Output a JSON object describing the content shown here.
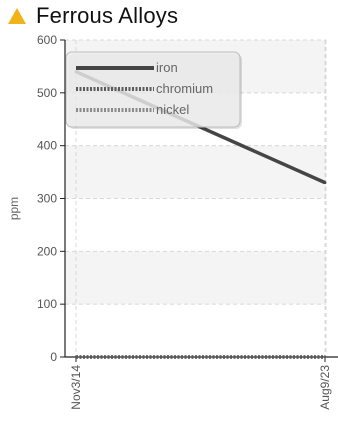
{
  "header": {
    "title": "Ferrous Alloys",
    "icon": "warning-triangle-icon",
    "icon_color": "#F2B21B"
  },
  "chart_data": {
    "type": "line",
    "title": "Ferrous Alloys",
    "xlabel": "",
    "ylabel": "ppm",
    "x": [
      "Nov3/14",
      "Aug9/23"
    ],
    "ylim": [
      0,
      600
    ],
    "yticks": [
      0,
      100,
      200,
      300,
      400,
      500,
      600
    ],
    "grid": true,
    "legend_position": "top-left",
    "series": [
      {
        "name": "iron",
        "values": [
          540,
          330
        ],
        "color": "#454545",
        "style": "solid"
      },
      {
        "name": "chromium",
        "values": [
          0,
          0
        ],
        "color": "#5a5a5a",
        "style": "dotted"
      },
      {
        "name": "nickel",
        "values": [
          0,
          0
        ],
        "color": "#8a8a8a",
        "style": "dotted"
      }
    ]
  }
}
